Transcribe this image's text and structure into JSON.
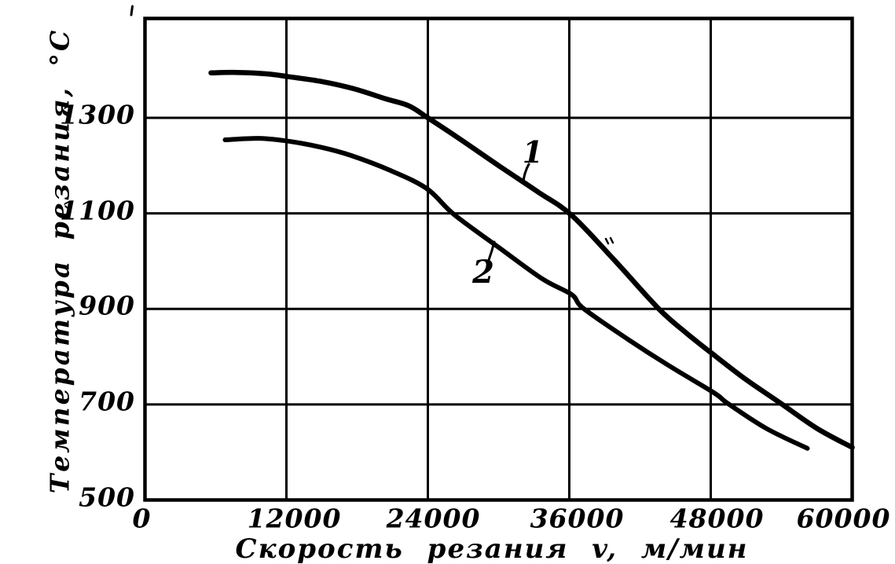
{
  "figure": {
    "background": "#ffffff",
    "ink_color": "#000000"
  },
  "chart_data": {
    "type": "line",
    "title": "",
    "xlabel": "Скорость резания v, м/мин",
    "ylabel": "Температура резания, °С",
    "xlim": [
      0,
      60000
    ],
    "ylim": [
      500,
      1510
    ],
    "x_tick_values": [
      0,
      12000,
      24000,
      36000,
      48000,
      60000
    ],
    "y_tick_values": [
      500,
      700,
      900,
      1100,
      1300
    ],
    "grid": true,
    "legend_position": "none",
    "series": [
      {
        "name": "1",
        "points": [
          [
            5600,
            1394
          ],
          [
            7700,
            1395
          ],
          [
            10400,
            1392
          ],
          [
            12200,
            1386
          ],
          [
            15000,
            1376
          ],
          [
            17700,
            1361
          ],
          [
            20400,
            1340
          ],
          [
            22400,
            1325
          ],
          [
            24000,
            1300
          ],
          [
            26700,
            1256
          ],
          [
            30000,
            1200
          ],
          [
            33400,
            1144
          ],
          [
            36200,
            1096
          ],
          [
            39900,
            1000
          ],
          [
            43600,
            900
          ],
          [
            46000,
            848
          ],
          [
            48300,
            803
          ],
          [
            51000,
            752
          ],
          [
            53900,
            703
          ],
          [
            57000,
            650
          ],
          [
            60000,
            610
          ]
        ]
      },
      {
        "name": "2",
        "points": [
          [
            6800,
            1254
          ],
          [
            9700,
            1257
          ],
          [
            12200,
            1251
          ],
          [
            15000,
            1238
          ],
          [
            17500,
            1221
          ],
          [
            20800,
            1190
          ],
          [
            23900,
            1152
          ],
          [
            26200,
            1098
          ],
          [
            30000,
            1029
          ],
          [
            33700,
            963
          ],
          [
            36200,
            930
          ],
          [
            37200,
            901
          ],
          [
            41000,
            836
          ],
          [
            44400,
            782
          ],
          [
            48300,
            724
          ],
          [
            49400,
            703
          ],
          [
            52700,
            650
          ],
          [
            56200,
            608
          ]
        ]
      }
    ]
  }
}
